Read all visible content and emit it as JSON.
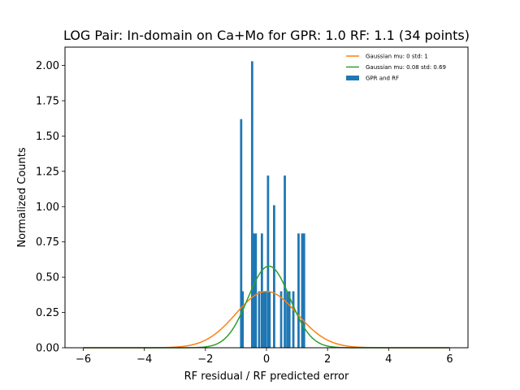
{
  "chart_data": {
    "type": "bar",
    "title": "LOG Pair: In-domain on Ca+Mo for GPR: 1.0 RF: 1.1 (34 points)",
    "xlabel": "RF residual / RF predicted error",
    "ylabel": "Normalized Counts",
    "xlim": [
      -6.6,
      6.6
    ],
    "ylim": [
      0,
      2.13
    ],
    "xticks": [
      -6,
      -4,
      -2,
      0,
      2,
      4,
      6
    ],
    "xtick_labels": [
      "−6",
      "−4",
      "−2",
      "0",
      "2",
      "4",
      "6"
    ],
    "yticks": [
      0,
      0.25,
      0.5,
      0.75,
      1.0,
      1.25,
      1.5,
      1.75,
      2.0
    ],
    "ytick_labels": [
      "0.00",
      "0.25",
      "0.50",
      "0.75",
      "1.00",
      "1.25",
      "1.50",
      "1.75",
      "2.00"
    ],
    "grid": false,
    "legend_position": "top-right",
    "histogram": {
      "name": "GPR and RF",
      "color": "#1f77b4",
      "bin_width": 0.0735,
      "bins": [
        {
          "x": -0.83,
          "value": 1.62
        },
        {
          "x": -0.78,
          "value": 0.4
        },
        {
          "x": -0.47,
          "value": 2.03
        },
        {
          "x": -0.42,
          "value": 0.81
        },
        {
          "x": -0.35,
          "value": 0.81
        },
        {
          "x": -0.24,
          "value": 0.4
        },
        {
          "x": -0.15,
          "value": 0.81
        },
        {
          "x": -0.1,
          "value": 0.4
        },
        {
          "x": -0.03,
          "value": 0.4
        },
        {
          "x": 0.05,
          "value": 1.22
        },
        {
          "x": 0.1,
          "value": 0.4
        },
        {
          "x": 0.25,
          "value": 1.01
        },
        {
          "x": 0.48,
          "value": 0.4
        },
        {
          "x": 0.6,
          "value": 1.22
        },
        {
          "x": 0.68,
          "value": 0.4
        },
        {
          "x": 0.75,
          "value": 0.4
        },
        {
          "x": 0.88,
          "value": 0.4
        },
        {
          "x": 1.05,
          "value": 0.81
        },
        {
          "x": 1.17,
          "value": 0.81
        },
        {
          "x": 1.23,
          "value": 0.81
        }
      ]
    },
    "curves": [
      {
        "name": "Gaussian mu: 0 std: 1",
        "color": "#ff7f0e",
        "mu": 0,
        "std": 1,
        "x_range": [
          -6,
          6
        ]
      },
      {
        "name": "Gaussian mu: 0.08 std: 0.69",
        "color": "#2ca02c",
        "mu": 0.08,
        "std": 0.69,
        "x_range": [
          -6,
          6
        ]
      }
    ]
  }
}
